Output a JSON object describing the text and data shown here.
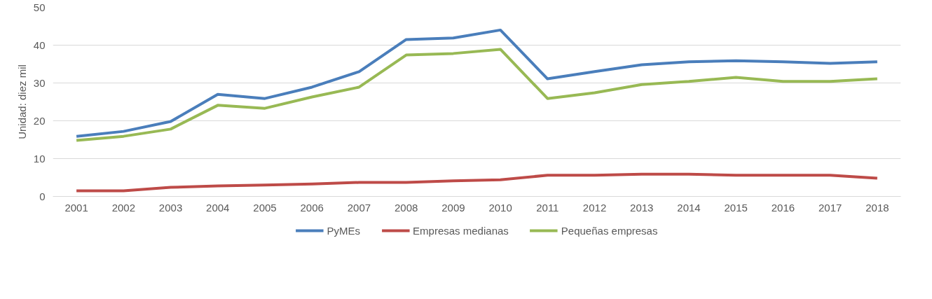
{
  "chart_data": {
    "type": "line",
    "ylabel": "Unidad: diez mil",
    "categories": [
      "2001",
      "2002",
      "2003",
      "2004",
      "2005",
      "2006",
      "2007",
      "2008",
      "2009",
      "2010",
      "2011",
      "2012",
      "2013",
      "2014",
      "2015",
      "2016",
      "2017",
      "2018"
    ],
    "series": [
      {
        "name": "PyMEs",
        "color": "#4a7ebb",
        "values": [
          15.9,
          17.2,
          19.8,
          27,
          25.9,
          28.9,
          33,
          41.5,
          41.9,
          44,
          31.1,
          33,
          34.8,
          35.6,
          35.9,
          35.6,
          35.2,
          35.6
        ]
      },
      {
        "name": "Empresas medianas",
        "color": "#be4b48",
        "values": [
          1.5,
          1.5,
          2.4,
          2.8,
          3,
          3.3,
          3.7,
          3.7,
          4.1,
          4.4,
          5.6,
          5.6,
          5.9,
          5.9,
          5.6,
          5.6,
          5.6,
          4.8
        ]
      },
      {
        "name": "Pequeñas empresas",
        "color": "#98b954",
        "values": [
          14.8,
          15.9,
          17.8,
          24.1,
          23.3,
          26.3,
          28.9,
          37.4,
          37.8,
          38.9,
          25.9,
          27.4,
          29.6,
          30.4,
          31.5,
          30.4,
          30.4,
          31.1
        ]
      }
    ],
    "ylim": [
      0,
      50
    ],
    "yticks": [
      0,
      10,
      20,
      30,
      40,
      50
    ],
    "grid": "y",
    "legend": "bottom",
    "line_style": "solid",
    "marker": "none"
  }
}
